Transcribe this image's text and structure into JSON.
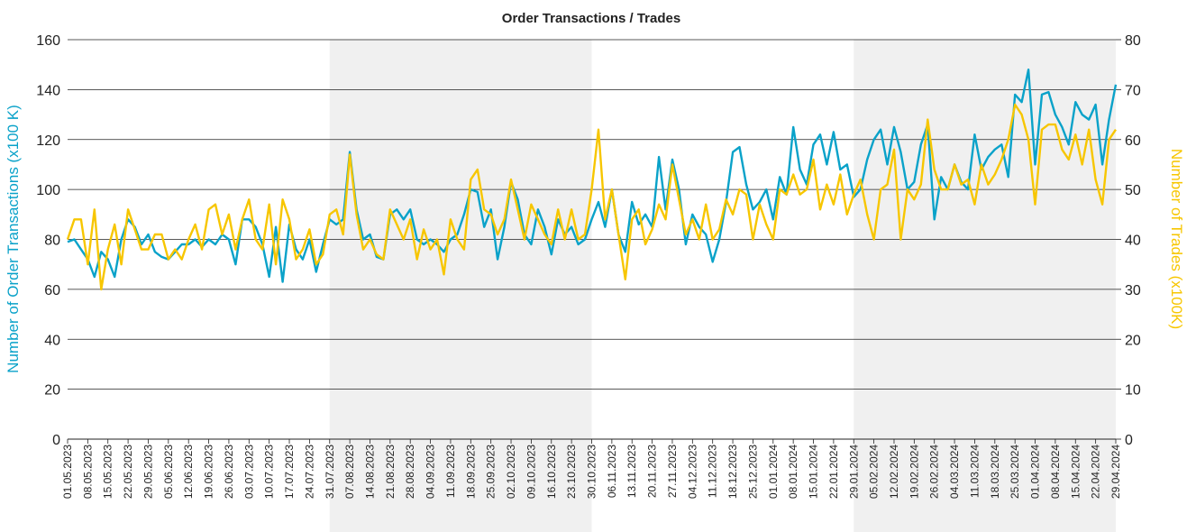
{
  "chart_data": {
    "type": "line",
    "title": "Order Transactions / Trades",
    "ylabel": "Number of Order Transactions (x100 K)",
    "y2label": "Number of Trades (x100K)",
    "categories": [
      "01.05.2023",
      null,
      null,
      "08.05.2023",
      null,
      null,
      "15.05.2023",
      null,
      null,
      "22.05.2023",
      null,
      null,
      "29.05.2023",
      null,
      null,
      "05.06.2023",
      null,
      null,
      "12.06.2023",
      null,
      null,
      "19.06.2023",
      null,
      null,
      "26.06.2023",
      null,
      null,
      "03.07.2023",
      null,
      null,
      "10.07.2023",
      null,
      null,
      "17.07.2023",
      null,
      null,
      "24.07.2023",
      null,
      null,
      "31.07.2023",
      null,
      null,
      "07.08.2023",
      null,
      null,
      "14.08.2023",
      null,
      null,
      "21.08.2023",
      null,
      null,
      "28.08.2023",
      null,
      null,
      "04.09.2023",
      null,
      null,
      "11.09.2023",
      null,
      null,
      "18.09.2023",
      null,
      null,
      "25.09.2023",
      null,
      null,
      "02.10.2023",
      null,
      null,
      "09.10.2023",
      null,
      null,
      "16.10.2023",
      null,
      null,
      "23.10.2023",
      null,
      null,
      "30.10.2023",
      null,
      null,
      "06.11.2023",
      null,
      null,
      "13.11.2023",
      null,
      null,
      "20.11.2023",
      null,
      null,
      "27.11.2023",
      null,
      null,
      "04.12.2023",
      null,
      null,
      "11.12.2023",
      null,
      null,
      "18.12.2023",
      null,
      null,
      "25.12.2023",
      null,
      null,
      "01.01.2024",
      null,
      null,
      "08.01.2024",
      null,
      null,
      "15.01.2024",
      null,
      null,
      "22.01.2024",
      null,
      null,
      "29.01.2024",
      null,
      null,
      "05.02.2024",
      null,
      null,
      "12.02.2024",
      null,
      null,
      "19.02.2024",
      null,
      null,
      "26.02.2024",
      null,
      null,
      "04.03.2024",
      null,
      null,
      "11.03.2024",
      null,
      null,
      "18.03.2024",
      null,
      null,
      "25.03.2024",
      null,
      null,
      "01.04.2024",
      null,
      null,
      "08.04.2024",
      null,
      null,
      "15.04.2024",
      null,
      null,
      "22.04.2024",
      null,
      null,
      "29.04.2024"
    ],
    "series": [
      {
        "name": "Number of Order Transactions (x100 K)",
        "color": "#0aa2c9",
        "axis": "y",
        "values": [
          79,
          80,
          76,
          72,
          65,
          75,
          72,
          65,
          80,
          88,
          85,
          78,
          82,
          75,
          73,
          72,
          75,
          78,
          78,
          80,
          77,
          80,
          78,
          82,
          80,
          70,
          88,
          88,
          85,
          78,
          65,
          85,
          63,
          86,
          76,
          72,
          80,
          67,
          78,
          88,
          86,
          88,
          115,
          92,
          80,
          82,
          73,
          72,
          90,
          92,
          88,
          92,
          80,
          78,
          80,
          78,
          75,
          80,
          82,
          90,
          100,
          99,
          85,
          92,
          72,
          85,
          103,
          96,
          82,
          78,
          92,
          85,
          74,
          88,
          82,
          85,
          78,
          80,
          88,
          95,
          85,
          100,
          82,
          75,
          95,
          86,
          90,
          85,
          113,
          92,
          112,
          100,
          78,
          90,
          85,
          82,
          71,
          80,
          95,
          115,
          117,
          102,
          92,
          95,
          100,
          88,
          105,
          98,
          125,
          108,
          102,
          118,
          122,
          110,
          123,
          108,
          110,
          97,
          100,
          112,
          120,
          124,
          110,
          125,
          115,
          100,
          103,
          118,
          126,
          88,
          105,
          100,
          110,
          103,
          100,
          122,
          108,
          113,
          116,
          118,
          105,
          138,
          135,
          148,
          110,
          138,
          139,
          130,
          125,
          118,
          135,
          130,
          128,
          134,
          110,
          128,
          142
        ]
      },
      {
        "name": "Number of Trades (x100K)",
        "color": "#f7c600",
        "axis": "y2",
        "values": [
          40,
          44,
          44,
          35,
          46,
          30,
          38,
          43,
          35,
          46,
          42,
          38,
          38,
          41,
          41,
          36,
          38,
          36,
          40,
          43,
          38,
          46,
          47,
          41,
          45,
          38,
          44,
          48,
          40,
          38,
          47,
          35,
          48,
          44,
          36,
          38,
          42,
          35,
          37,
          45,
          46,
          41,
          57,
          45,
          38,
          40,
          37,
          36,
          46,
          43,
          40,
          44,
          36,
          42,
          38,
          40,
          33,
          44,
          40,
          38,
          52,
          54,
          46,
          45,
          41,
          44,
          52,
          46,
          40,
          47,
          44,
          41,
          39,
          46,
          40,
          46,
          40,
          41,
          50,
          62,
          44,
          50,
          41,
          32,
          44,
          46,
          39,
          42,
          47,
          44,
          55,
          48,
          41,
          44,
          40,
          47,
          40,
          42,
          48,
          45,
          50,
          49,
          40,
          47,
          43,
          40,
          50,
          49,
          53,
          49,
          50,
          56,
          46,
          51,
          47,
          53,
          45,
          49,
          52,
          45,
          40,
          50,
          51,
          58,
          40,
          50,
          48,
          51,
          64,
          54,
          50,
          50,
          55,
          51,
          52,
          47,
          55,
          51,
          53,
          56,
          60,
          67,
          65,
          60,
          47,
          62,
          63,
          63,
          58,
          56,
          61,
          55,
          62,
          52,
          47,
          60,
          62
        ]
      }
    ],
    "ylim": [
      0,
      160
    ],
    "yticks": [
      0,
      20,
      40,
      60,
      80,
      100,
      120,
      140,
      160
    ],
    "y2lim": [
      0,
      80
    ],
    "y2ticks": [
      0,
      10,
      20,
      30,
      40,
      50,
      60,
      70,
      80
    ],
    "grid": true,
    "shaded_ranges": [
      [
        "31.07.2023",
        "30.10.2023"
      ],
      [
        "29.01.2024",
        "29.04.2024"
      ]
    ]
  }
}
